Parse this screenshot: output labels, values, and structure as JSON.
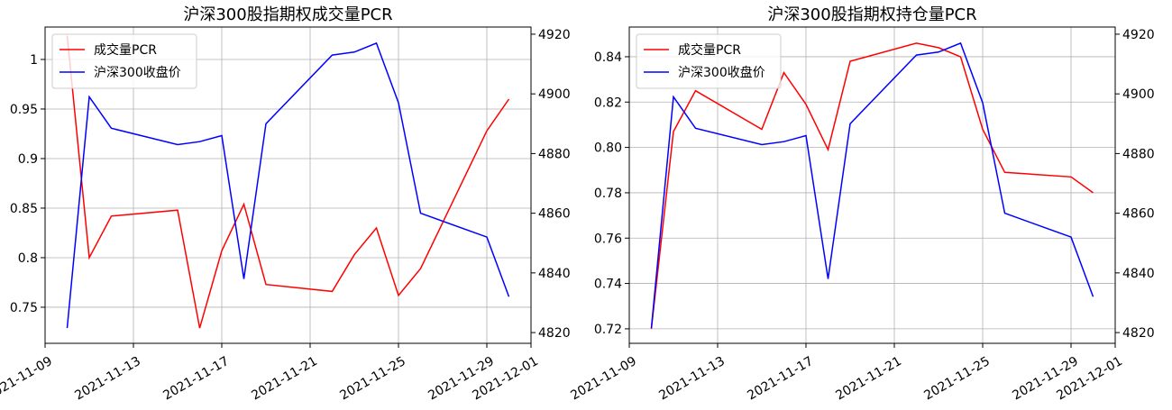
{
  "chart_data": [
    {
      "type": "line",
      "title": "沪深300股指期权成交量PCR",
      "x": [
        "2021-11-10",
        "2021-11-11",
        "2021-11-12",
        "2021-11-15",
        "2021-11-16",
        "2021-11-17",
        "2021-11-18",
        "2021-11-19",
        "2021-11-22",
        "2021-11-23",
        "2021-11-24",
        "2021-11-25",
        "2021-11-26",
        "2021-11-29",
        "2021-11-30"
      ],
      "series": [
        {
          "name": "成交量PCR",
          "color": "#ff0000",
          "values": [
            1.024,
            0.8,
            0.842,
            0.848,
            0.729,
            0.807,
            0.854,
            0.773,
            0.766,
            0.803,
            0.83,
            0.762,
            0.789,
            0.928,
            0.96
          ]
        },
        {
          "name": "沪深300收盘价",
          "color": "#0000ff",
          "axis": "y2",
          "values": [
            4821.5,
            4899,
            4888.5,
            4883,
            4884,
            4886,
            4838,
            4890,
            4913,
            4914,
            4917,
            4897,
            4860,
            4852,
            4832
          ]
        }
      ],
      "xlim": [
        "2021-11-09",
        "2021-12-01"
      ],
      "xticks": [
        "2021-11-09",
        "2021-11-13",
        "2021-11-17",
        "2021-11-21",
        "2021-11-25",
        "2021-11-29",
        "2021-12-01"
      ],
      "ylim": [
        0.7136,
        1.0327
      ],
      "yticks": [
        0.75,
        0.8,
        0.85,
        0.9,
        0.95,
        1.0
      ],
      "y2lim": [
        4816.4,
        4922.4
      ],
      "y2ticks": [
        4820,
        4840,
        4860,
        4880,
        4900,
        4920
      ],
      "grid": true,
      "legend": "upper left"
    },
    {
      "type": "line",
      "title": "沪深300股指期权持仓量PCR",
      "x": [
        "2021-11-10",
        "2021-11-11",
        "2021-11-12",
        "2021-11-15",
        "2021-11-16",
        "2021-11-17",
        "2021-11-18",
        "2021-11-19",
        "2021-11-22",
        "2021-11-23",
        "2021-11-24",
        "2021-11-25",
        "2021-11-26",
        "2021-11-29",
        "2021-11-30"
      ],
      "series": [
        {
          "name": "成交量PCR",
          "color": "#ff0000",
          "values": [
            0.72,
            0.807,
            0.825,
            0.808,
            0.833,
            0.819,
            0.799,
            0.838,
            0.846,
            0.844,
            0.84,
            0.808,
            0.789,
            0.787,
            0.78
          ]
        },
        {
          "name": "沪深300收盘价",
          "color": "#0000ff",
          "axis": "y2",
          "values": [
            4821.5,
            4899,
            4888.5,
            4883,
            4884,
            4886,
            4838,
            4890,
            4913,
            4914,
            4917,
            4897,
            4860,
            4852,
            4832
          ]
        }
      ],
      "xlim": [
        "2021-11-09",
        "2021-12-01"
      ],
      "xticks": [
        "2021-11-09",
        "2021-11-13",
        "2021-11-17",
        "2021-11-21",
        "2021-11-25",
        "2021-11-29",
        "2021-12-01"
      ],
      "ylim": [
        0.7136,
        0.8531
      ],
      "yticks": [
        0.72,
        0.74,
        0.76,
        0.78,
        {
          "value": 0.8,
          "label": "0.80"
        },
        0.82,
        0.84
      ],
      "y2lim": [
        4816.4,
        4922.4
      ],
      "y2ticks": [
        4820,
        4840,
        4860,
        4880,
        4900,
        4920
      ],
      "grid": true,
      "legend": "upper left"
    }
  ]
}
